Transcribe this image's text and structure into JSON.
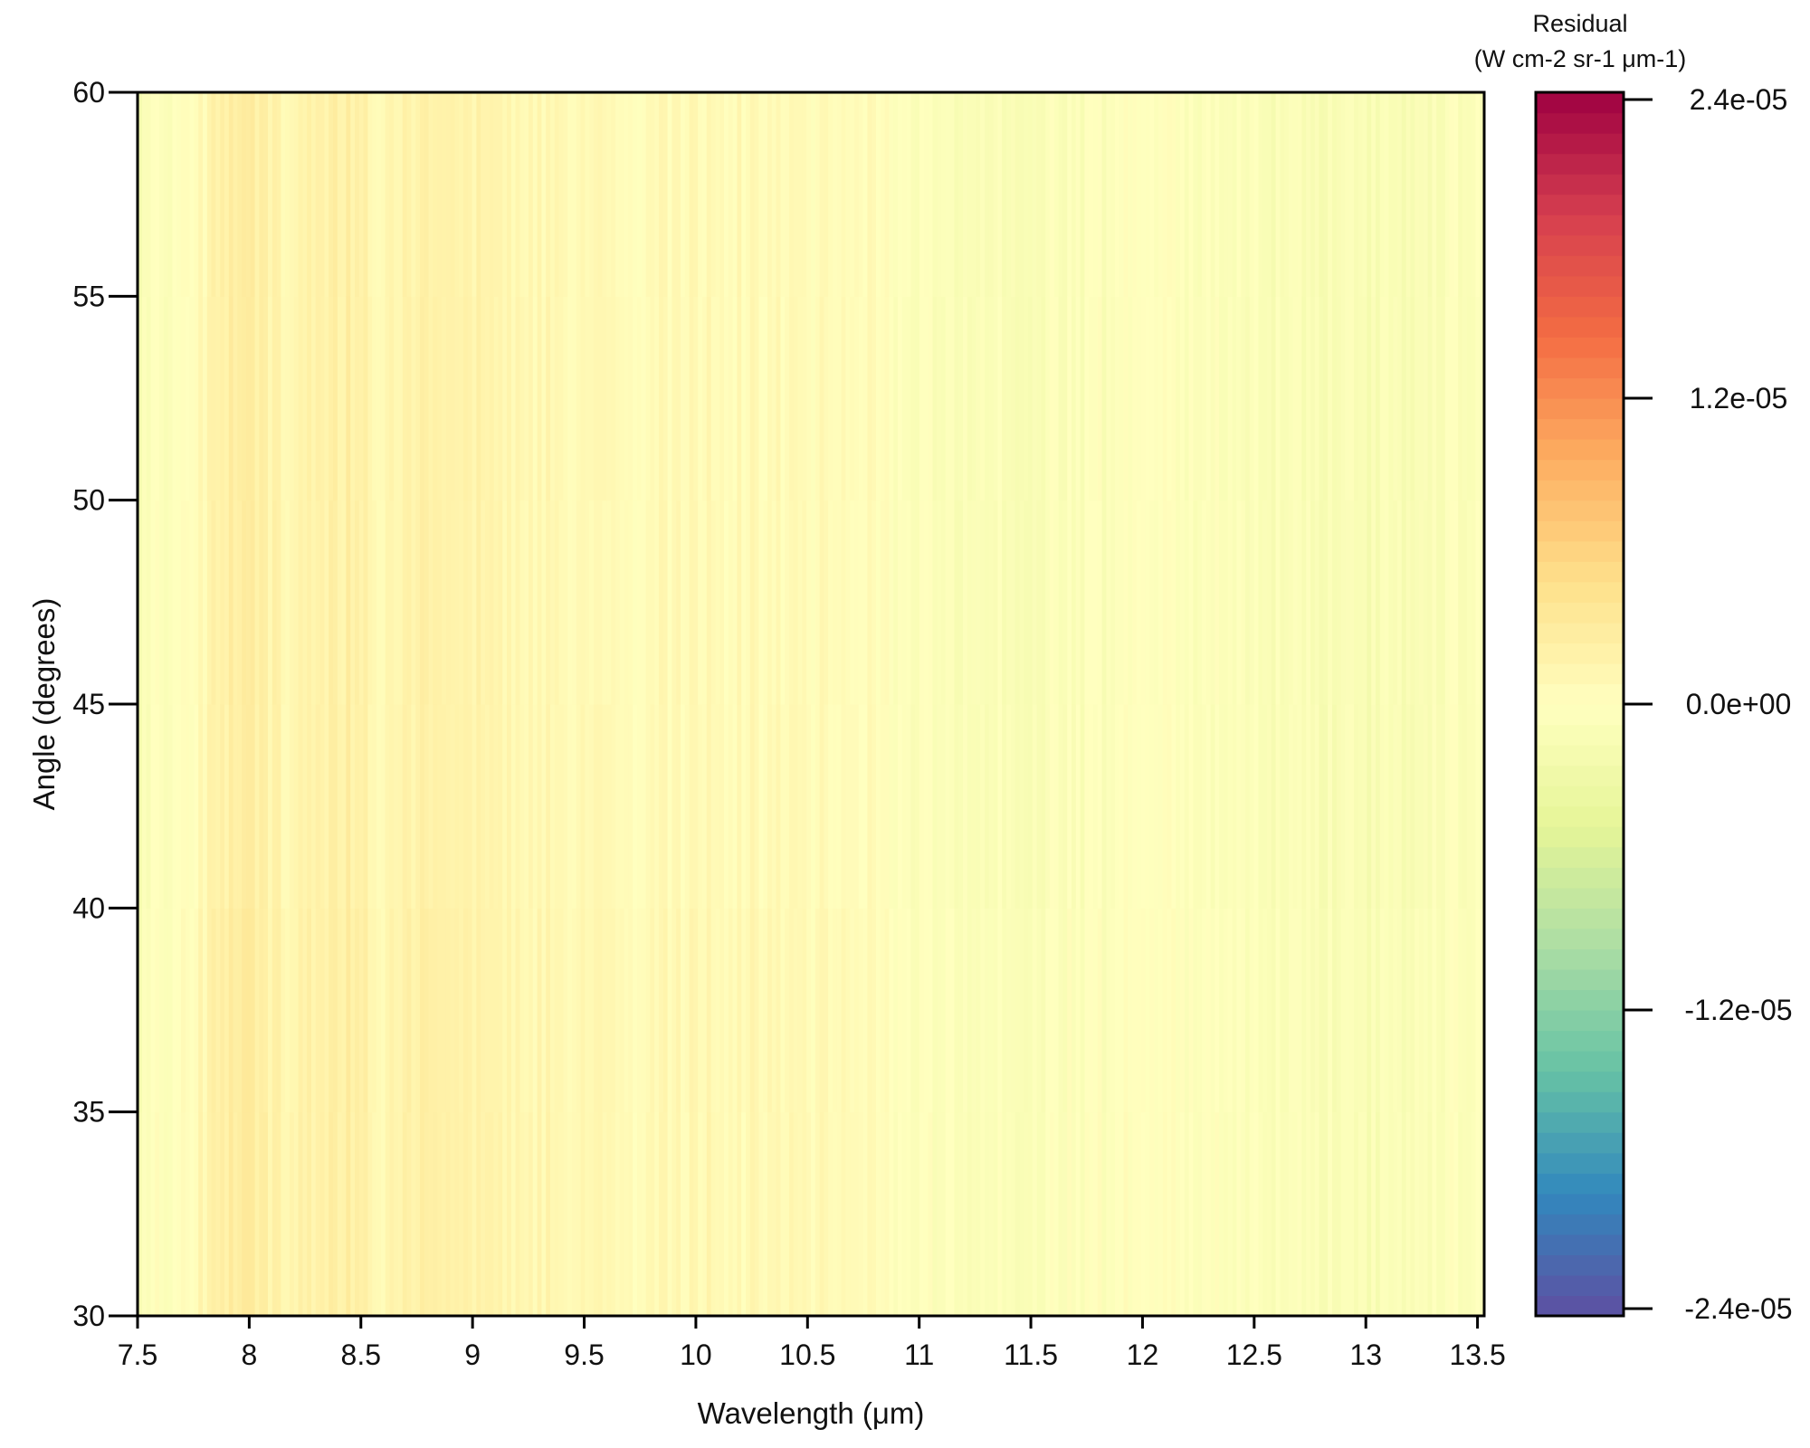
{
  "chart_data": {
    "type": "heatmap",
    "title": "",
    "xlabel": "Wavelength (μm)",
    "ylabel": "Angle (degrees)",
    "xlim": [
      7.5,
      13.53
    ],
    "ylim": [
      30,
      60
    ],
    "x_ticks": [
      "7.5",
      "8",
      "8.5",
      "9",
      "9.5",
      "10",
      "10.5",
      "11",
      "11.5",
      "12",
      "12.5",
      "13",
      "13.5"
    ],
    "y_ticks": [
      "30",
      "35",
      "40",
      "45",
      "50",
      "55",
      "60"
    ],
    "colorbar": {
      "title_line1": "Residual",
      "title_line2": "(W cm-2 sr-1  μm-1)",
      "range": [
        -2.4e-05,
        2.4e-05
      ],
      "ticks": [
        "2.4e-05",
        "1.2e-05",
        "0.0e+00",
        "-1.2e-05",
        "-2.4e-05"
      ],
      "colormap": "Spectral",
      "colors": [
        "#5e4fa2",
        "#3288bd",
        "#66c2a5",
        "#abdda4",
        "#e6f598",
        "#ffffbf",
        "#fee08b",
        "#fdae61",
        "#f46d43",
        "#d53e4f",
        "#9e0142"
      ]
    },
    "residual_profile": {
      "wavelength": [
        7.5,
        7.6,
        7.75,
        7.9,
        8.0,
        8.15,
        8.3,
        8.45,
        8.6,
        8.8,
        9.0,
        9.2,
        9.5,
        9.8,
        10.0,
        10.2,
        10.4,
        10.5,
        10.7,
        10.9,
        11.0,
        11.2,
        11.5,
        11.8,
        12.0,
        12.3,
        12.5,
        12.8,
        13.0,
        13.2,
        13.4,
        13.53
      ],
      "residual": [
        -1.3e-06,
        -4e-07,
        6e-07,
        2.2e-06,
        3e-06,
        1.2e-06,
        1.6e-06,
        2.4e-06,
        1.2e-06,
        2e-06,
        1.6e-06,
        1.2e-06,
        9e-07,
        7e-07,
        1.2e-06,
        8e-07,
        6e-07,
        6e-07,
        4e-07,
        0,
        -6e-07,
        -9e-07,
        -8e-07,
        -6e-07,
        -3e-07,
        -6e-07,
        -9e-07,
        -1.2e-06,
        -1.4e-06,
        -1.1e-06,
        -7e-07,
        -5e-07
      ]
    }
  }
}
